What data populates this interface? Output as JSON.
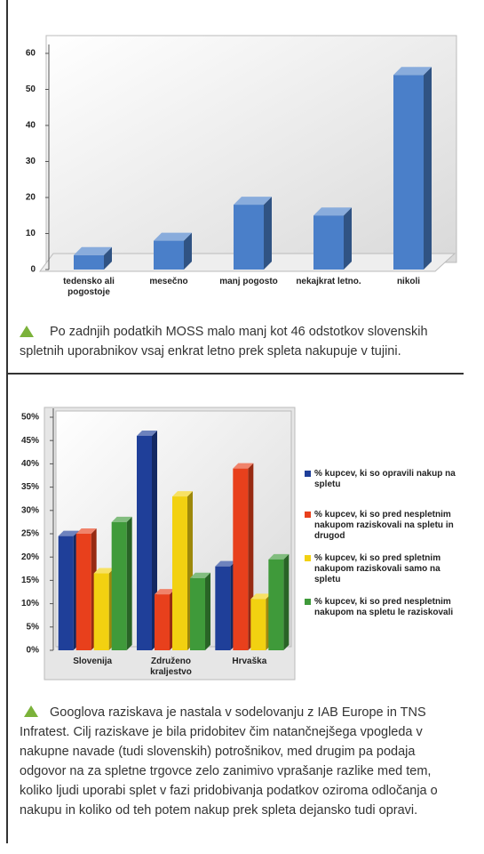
{
  "chart_data": [
    {
      "type": "bar",
      "categories": [
        "tedensko ali pogostoje",
        "mesečno",
        "manj pogosto",
        "nekajkrat letno.",
        "nikoli"
      ],
      "values": [
        4,
        8,
        18,
        15,
        54
      ],
      "color": "#4a7fc9",
      "ylim": [
        0,
        60
      ],
      "yticks": [
        0,
        10,
        20,
        30,
        40,
        50,
        60
      ],
      "caption": "Po zadnjih podatkih MOSS malo manj kot 46 odstotkov slovenskih spletnih uporabnikov vsaj enkrat letno prek spleta nakupuje v tujini."
    },
    {
      "type": "bar",
      "categories": [
        "Slovenija",
        "Združeno kraljestvo",
        "Hrvaška"
      ],
      "series": [
        {
          "name": "% kupcev, ki so opravili nakup na spletu",
          "color": "#1f3f99",
          "values": [
            24.5,
            46,
            18
          ]
        },
        {
          "name": "% kupcev, ki so pred nespletnim nakupom raziskovali na spletu in drugod",
          "color": "#e8401c",
          "values": [
            25,
            12,
            39
          ]
        },
        {
          "name": "% kupcev, ki so pred spletnim nakupom raziskovali samo na spletu",
          "color": "#f2d111",
          "values": [
            16.5,
            33,
            11
          ]
        },
        {
          "name": "% kupcev, ki so pred nespletnim nakupom na spletu le raziskovali",
          "color": "#3f9a3a",
          "values": [
            27.5,
            15.5,
            19.5
          ]
        }
      ],
      "ylim": [
        0,
        50
      ],
      "yticks": [
        {
          "value": 0,
          "label": "0%"
        },
        {
          "value": 5,
          "label": "5%"
        },
        {
          "value": 10,
          "label": "10%"
        },
        {
          "value": 15,
          "label": "15%"
        },
        {
          "value": 20,
          "label": "20%"
        },
        {
          "value": 25,
          "label": "25%"
        },
        {
          "value": 30,
          "label": "30%"
        },
        {
          "value": 35,
          "label": "35%"
        },
        {
          "value": 40,
          "label": "40%"
        },
        {
          "value": 45,
          "label": "45%"
        },
        {
          "value": 50,
          "label": "50%"
        }
      ],
      "legend": "right",
      "caption": "Googlova raziskava je nastala v sodelovanju z IAB Europe in TNS Infratest. Cilj raziskave je bila pridobitev čim natančnejšega vpogleda v nakupne navade (tudi slovenskih) potrošnikov, med drugim pa podaja odgovor na za spletne trgovce zelo zanimivo vprašanje razlike med tem, koliko ljudi uporabi splet v fazi pridobivanja podatkov oziroma odločanja o nakupu in koliko od teh potem nakup prek spleta dejansko tudi opravi."
    }
  ]
}
